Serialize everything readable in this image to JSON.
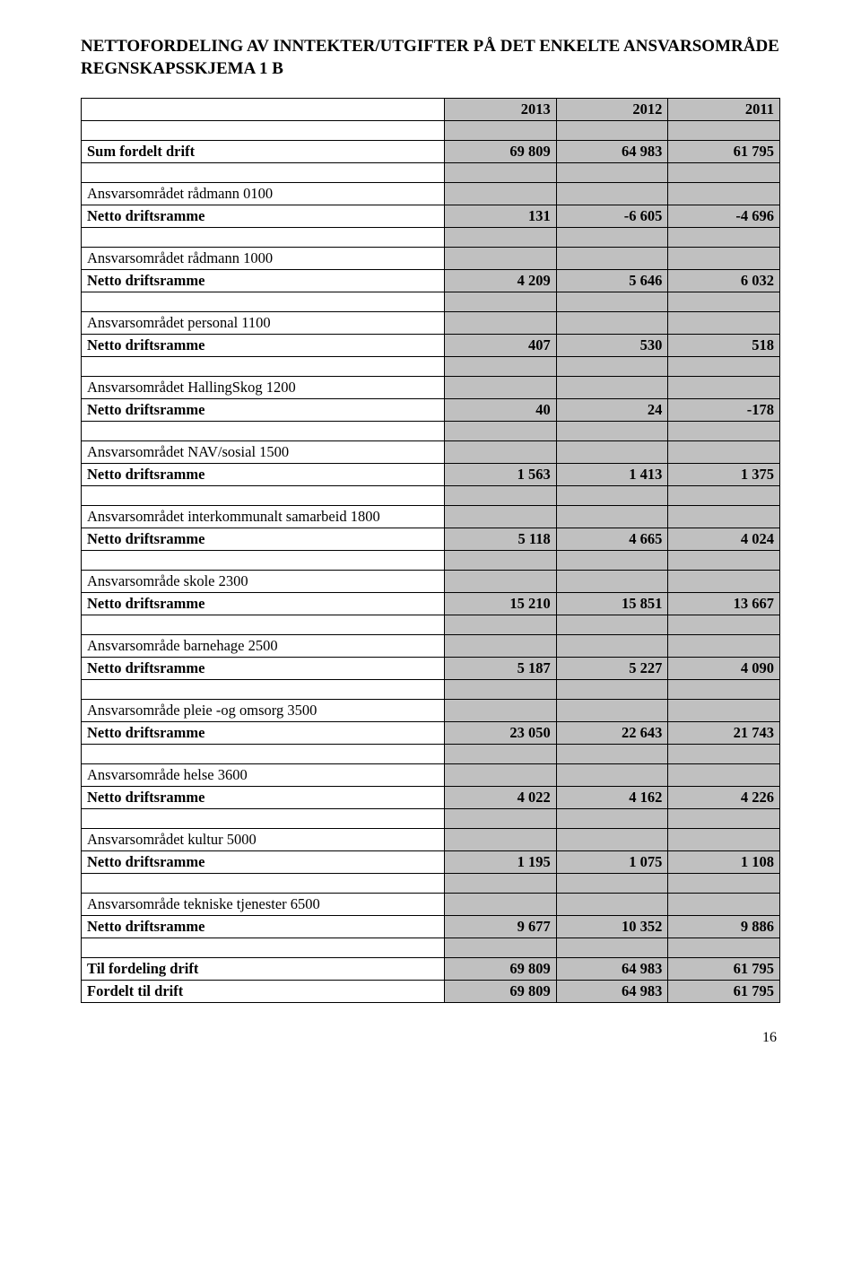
{
  "title": "NETTOFORDELING AV INNTEKTER/UTGIFTER PÅ DET ENKELTE ANSVARSOMRÅDE REGNSKAPSSKJEMA 1 B",
  "page_number": "16",
  "header_years": [
    "2013",
    "2012",
    "2011"
  ],
  "sum_fordelt": {
    "label": "Sum fordelt drift",
    "v": [
      "69 809",
      "64 983",
      "61 795"
    ]
  },
  "sections": [
    {
      "area": "Ansvarsområdet rådmann 0100",
      "ramme": "Netto driftsramme",
      "v": [
        "131",
        "-6 605",
        "-4 696"
      ]
    },
    {
      "area": "Ansvarsområdet rådmann 1000",
      "ramme": "Netto driftsramme",
      "v": [
        "4 209",
        "5 646",
        "6 032"
      ]
    },
    {
      "area": "Ansvarsområdet personal 1100",
      "ramme": "Netto driftsramme",
      "v": [
        "407",
        "530",
        "518"
      ]
    },
    {
      "area": "Ansvarsområdet HallingSkog 1200",
      "ramme": "Netto driftsramme",
      "v": [
        "40",
        "24",
        "-178"
      ]
    },
    {
      "area": "Ansvarsområdet NAV/sosial 1500",
      "ramme": "Netto driftsramme",
      "v": [
        "1 563",
        "1 413",
        "1 375"
      ]
    },
    {
      "area": "Ansvarsområdet interkommunalt samarbeid 1800",
      "ramme": "Netto driftsramme",
      "v": [
        "5 118",
        "4 665",
        "4 024"
      ]
    },
    {
      "area": "Ansvarsområde skole 2300",
      "ramme": "Netto driftsramme",
      "v": [
        "15 210",
        "15 851",
        "13 667"
      ]
    },
    {
      "area": "Ansvarsområde barnehage 2500",
      "ramme": "Netto driftsramme",
      "v": [
        "5 187",
        "5 227",
        "4 090"
      ]
    },
    {
      "area": "Ansvarsområde pleie -og omsorg 3500",
      "ramme": "Netto driftsramme",
      "v": [
        "23 050",
        "22 643",
        "21 743"
      ]
    },
    {
      "area": "Ansvarsområde helse 3600",
      "ramme": "Netto driftsramme",
      "v": [
        "4 022",
        "4 162",
        "4 226"
      ]
    },
    {
      "area": "Ansvarsområdet kultur 5000",
      "ramme": "Netto driftsramme",
      "v": [
        "1 195",
        "1 075",
        "1 108"
      ]
    },
    {
      "area": "Ansvarsområde tekniske tjenester  6500",
      "ramme": "Netto driftsramme",
      "v": [
        "9 677",
        "10 352",
        "9 886"
      ]
    }
  ],
  "footer_rows": [
    {
      "label": "Til fordeling drift",
      "v": [
        "69 809",
        "64 983",
        "61 795"
      ]
    },
    {
      "label": "Fordelt til drift",
      "v": [
        "69 809",
        "64 983",
        "61 795"
      ]
    }
  ]
}
